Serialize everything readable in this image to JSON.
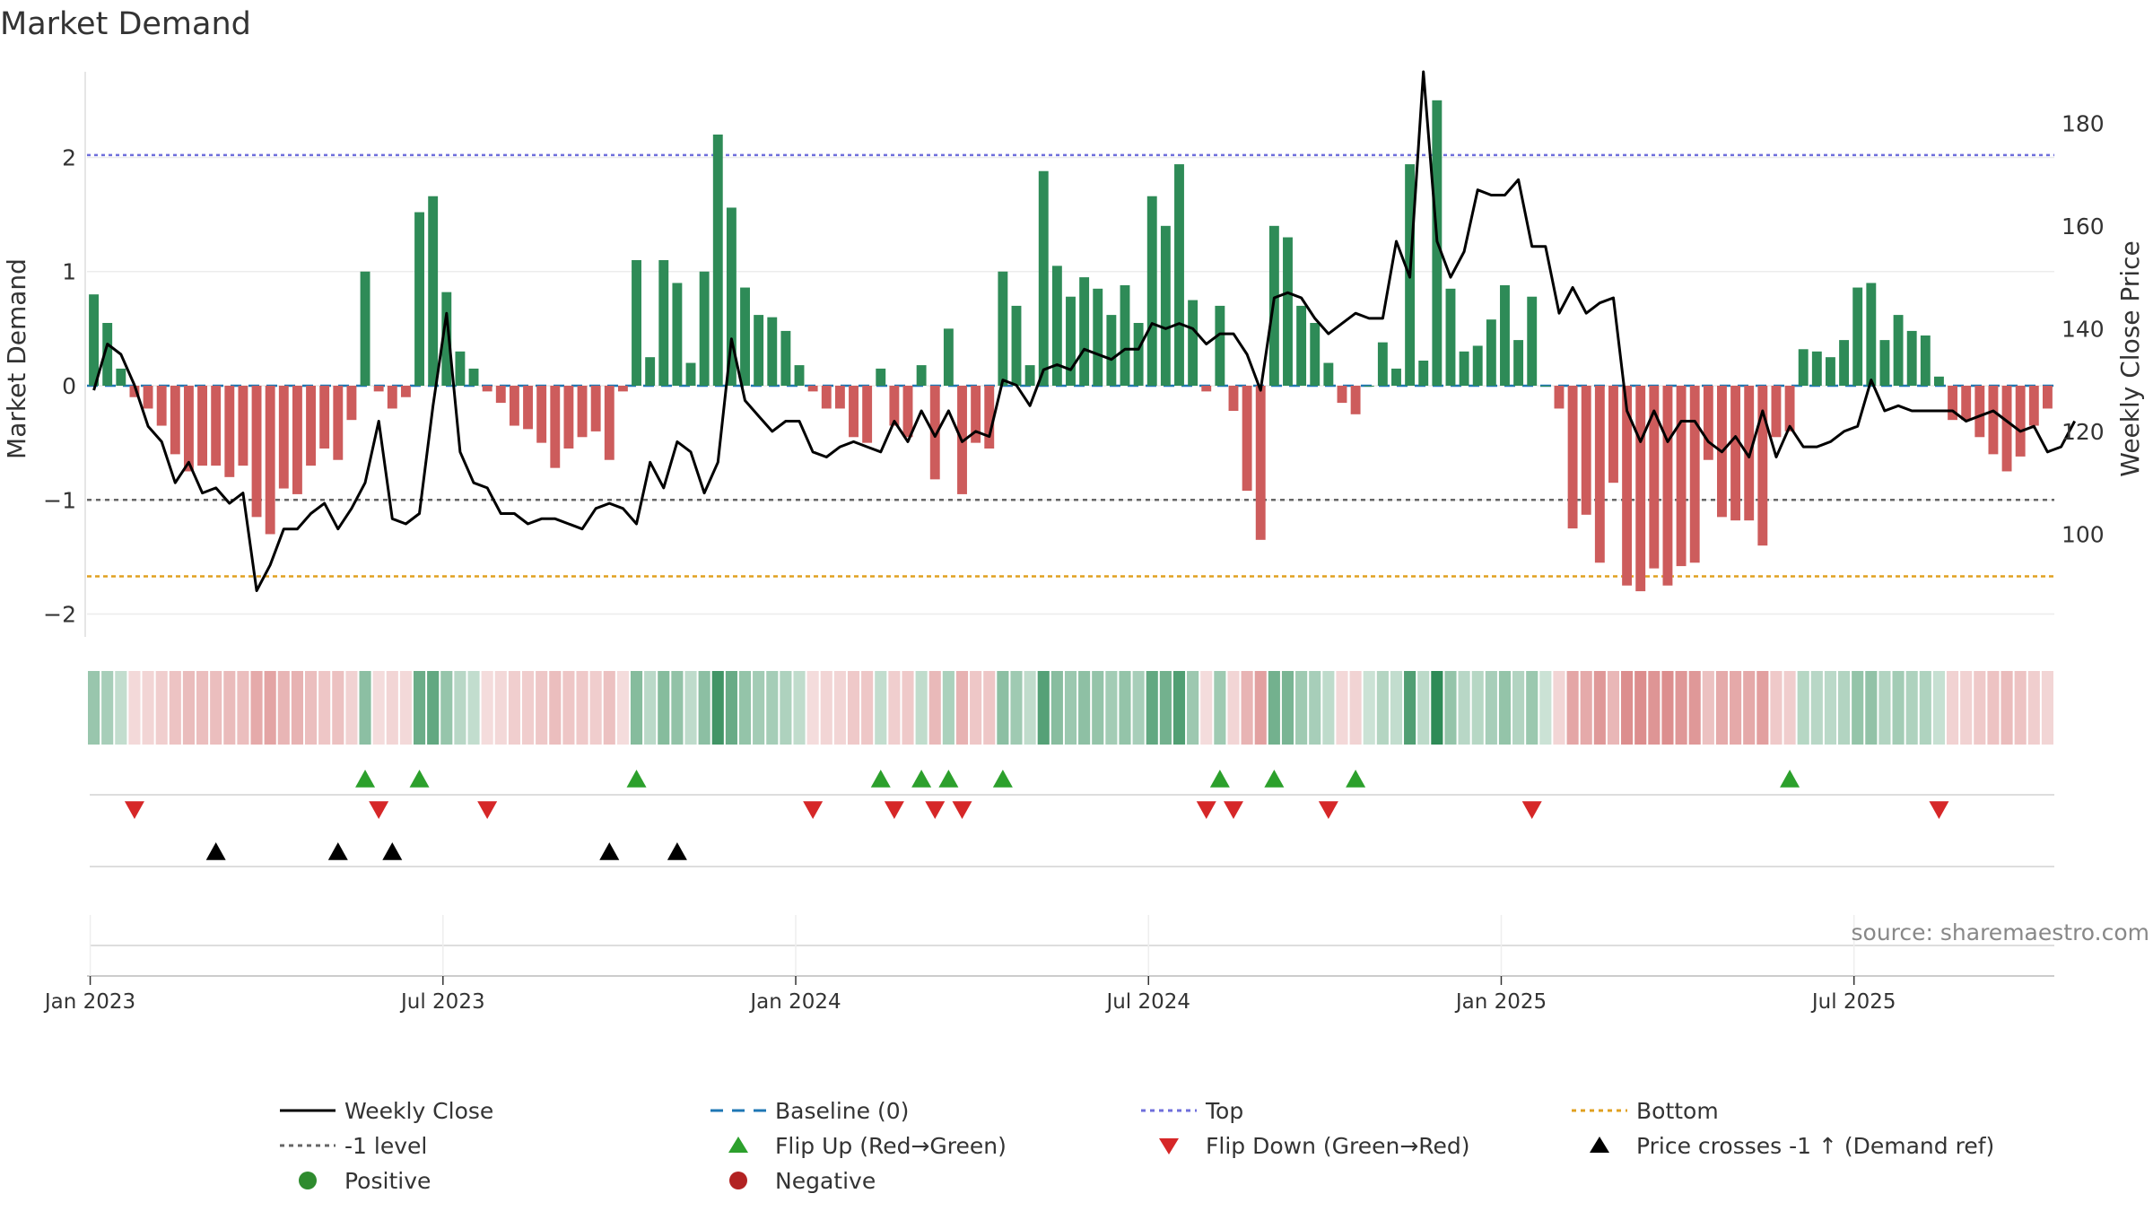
{
  "chart_data": {
    "type": "bar",
    "title": "Market Demand",
    "ylabel_left": "Market Demand",
    "ylabel_right": "Weekly Close Price",
    "ylim_left": [
      -2.2,
      2.75
    ],
    "ylim_right": [
      80,
      190
    ],
    "left_ticks": [
      {
        "v": 2,
        "label": "2"
      },
      {
        "v": 1,
        "label": "1"
      },
      {
        "v": 0,
        "label": "0"
      },
      {
        "v": -1,
        "label": "−1"
      },
      {
        "v": -2,
        "label": "−2"
      }
    ],
    "right_ticks": [
      {
        "v": 100,
        "label": "100"
      },
      {
        "v": 120,
        "label": "120"
      },
      {
        "v": 140,
        "label": "140"
      },
      {
        "v": 160,
        "label": "160"
      },
      {
        "v": 180,
        "label": "180"
      }
    ],
    "x_ticks": [
      {
        "i": 0,
        "label": "Jan 2023"
      },
      {
        "i": 26,
        "label": "Jul 2023"
      },
      {
        "i": 52,
        "label": "Jan 2024"
      },
      {
        "i": 78,
        "label": "Jul 2024"
      },
      {
        "i": 104,
        "label": "Jan 2025"
      },
      {
        "i": 130,
        "label": "Jul 2025"
      }
    ],
    "reference_lines": {
      "top": 2.02,
      "minus_one": -1,
      "bottom": -1.67,
      "baseline": 0
    },
    "demand": [
      0.8,
      0.55,
      0.15,
      -0.1,
      -0.2,
      -0.35,
      -0.6,
      -0.75,
      -0.7,
      -0.7,
      -0.8,
      -0.7,
      -1.15,
      -1.3,
      -0.9,
      -0.95,
      -0.7,
      -0.55,
      -0.65,
      -0.3,
      1.0,
      -0.05,
      -0.2,
      -0.1,
      1.52,
      1.66,
      0.82,
      0.3,
      0.15,
      -0.05,
      -0.15,
      -0.35,
      -0.38,
      -0.5,
      -0.72,
      -0.55,
      -0.45,
      -0.4,
      -0.65,
      -0.05,
      1.1,
      0.25,
      1.1,
      0.9,
      0.2,
      1.0,
      2.2,
      1.56,
      0.86,
      0.62,
      0.6,
      0.48,
      0.18,
      -0.05,
      -0.2,
      -0.2,
      -0.45,
      -0.5,
      0.15,
      -0.35,
      -0.45,
      0.18,
      -0.82,
      0.5,
      -0.95,
      -0.5,
      -0.55,
      1.0,
      0.7,
      0.18,
      1.88,
      1.05,
      0.78,
      0.95,
      0.85,
      0.62,
      0.88,
      0.55,
      1.66,
      1.4,
      1.94,
      0.75,
      -0.05,
      0.7,
      -0.22,
      -0.92,
      -1.35,
      1.4,
      1.3,
      0.7,
      0.55,
      0.2,
      -0.15,
      -0.25,
      0.0,
      0.38,
      0.15,
      1.94,
      0.22,
      2.5,
      0.85,
      0.3,
      0.35,
      0.58,
      0.88,
      0.4,
      0.78,
      0.0,
      -0.2,
      -1.25,
      -1.13,
      -1.55,
      -0.85,
      -1.75,
      -1.8,
      -1.6,
      -1.75,
      -1.58,
      -1.55,
      -0.65,
      -1.15,
      -1.18,
      -1.18,
      -1.4,
      -0.45,
      -0.4,
      0.32,
      0.3,
      0.25,
      0.4,
      0.86,
      0.9,
      0.4,
      0.62,
      0.48,
      0.44,
      0.08,
      -0.3,
      -0.3,
      -0.45,
      -0.6,
      -0.75,
      -0.62,
      -0.35,
      -0.2
    ],
    "weekly_close": [
      128,
      137,
      135,
      129,
      121,
      118,
      110,
      114,
      108,
      109,
      106,
      108,
      89,
      94,
      101,
      101,
      104,
      106,
      101,
      105,
      110,
      122,
      103,
      102,
      104,
      125,
      143,
      116,
      110,
      109,
      104,
      104,
      102,
      103,
      103,
      102,
      101,
      105,
      106,
      105,
      102,
      114,
      109,
      118,
      116,
      108,
      114,
      138,
      126,
      123,
      120,
      122,
      122,
      116,
      115,
      117,
      118,
      117,
      116,
      122,
      118,
      124,
      119,
      124,
      118,
      120,
      119,
      130,
      129,
      125,
      132,
      133,
      132,
      136,
      135,
      134,
      136,
      136,
      141,
      140,
      141,
      140,
      137,
      139,
      139,
      135,
      128,
      146,
      147,
      146,
      142,
      139,
      141,
      143,
      142,
      142,
      157,
      150,
      190,
      157,
      150,
      155,
      167,
      166,
      166,
      169,
      156,
      156,
      143,
      148,
      143,
      145,
      146,
      124,
      118,
      124,
      118,
      122,
      122,
      118,
      116,
      119,
      115,
      124,
      115,
      121,
      117,
      117,
      118,
      120,
      121,
      130,
      124,
      125,
      124,
      124,
      124,
      124,
      122,
      123,
      124,
      122,
      120,
      121,
      116,
      117,
      122
    ],
    "flip_up": [
      20,
      24,
      40,
      58,
      61,
      63,
      67,
      83,
      87,
      93,
      125
    ],
    "flip_down": [
      3,
      21,
      29,
      53,
      59,
      62,
      64,
      82,
      84,
      91,
      106,
      136
    ],
    "price_cross": [
      9,
      18,
      22,
      38,
      43
    ],
    "legend": [
      {
        "label": "Weekly Close",
        "kind": "line-solid",
        "color": "#000000"
      },
      {
        "label": "Baseline (0)",
        "kind": "line-dash",
        "color": "#1f77b4"
      },
      {
        "label": "Top",
        "kind": "line-dot",
        "color": "#6f6fdb"
      },
      {
        "label": "Bottom",
        "kind": "line-dot",
        "color": "#e0a020"
      },
      {
        "label": "-1 level",
        "kind": "line-dot",
        "color": "#666666"
      },
      {
        "label": "Flip Up (Red→Green)",
        "kind": "tri-up",
        "color": "#2ca02c"
      },
      {
        "label": "Flip Down (Green→Red)",
        "kind": "tri-down",
        "color": "#d62728"
      },
      {
        "label": "Price crosses -1 ↑ (Demand ref)",
        "kind": "tri-up",
        "color": "#000000"
      },
      {
        "label": "Positive",
        "kind": "dot",
        "color": "#2e8b2e"
      },
      {
        "label": "Negative",
        "kind": "dot",
        "color": "#b22222"
      }
    ],
    "source_text": "source: sharemaestro.com",
    "colors": {
      "positive": "#2e8b57",
      "negative": "#cd5c5c",
      "flip_up": "#2ca02c",
      "flip_down": "#d62728",
      "price": "#000000"
    }
  }
}
